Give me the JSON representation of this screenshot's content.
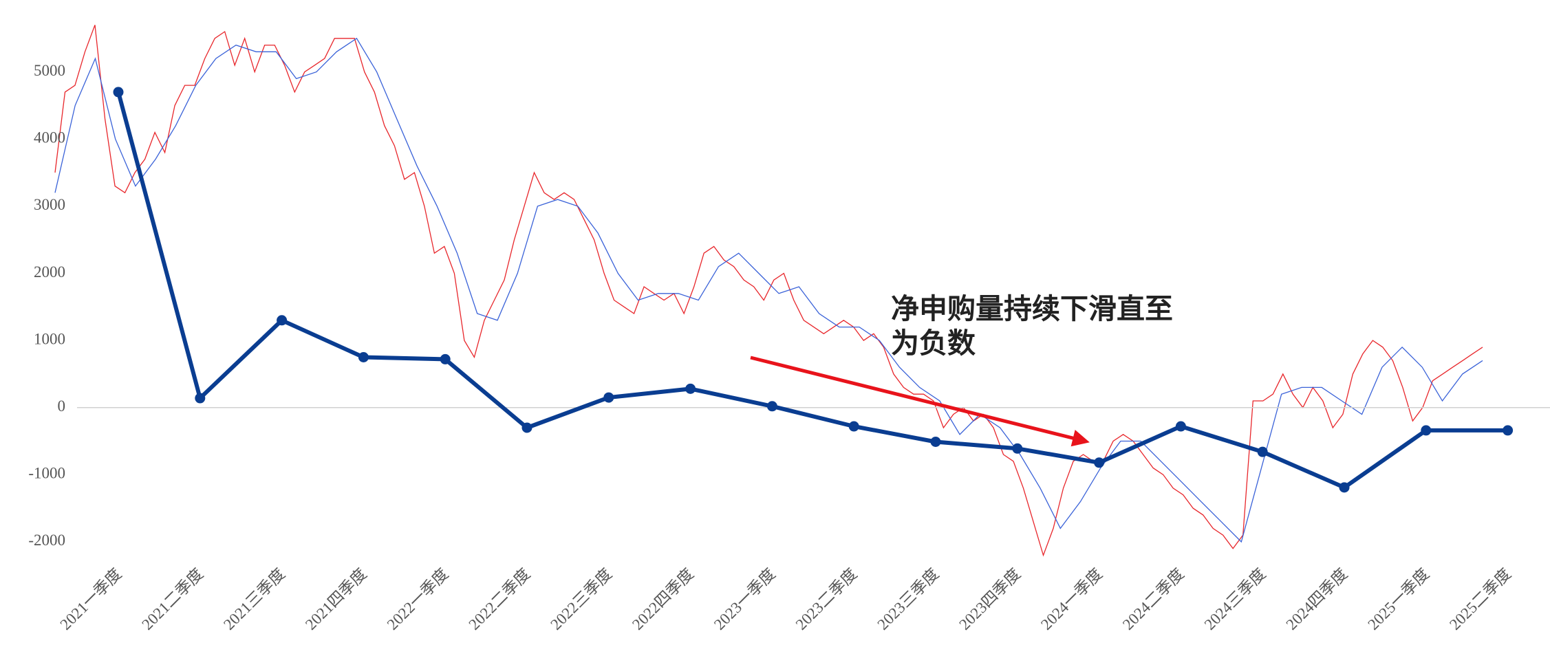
{
  "chart_data": {
    "type": "line",
    "categories": [
      "2021一季度",
      "2021二季度",
      "2021三季度",
      "2021四季度",
      "2022一季度",
      "2022二季度",
      "2022三季度",
      "2022四季度",
      "2023一季度",
      "2023二季度",
      "2023三季度",
      "2023四季度",
      "2024一季度",
      "2024二季度",
      "2024三季度",
      "2024四季度",
      "2025一季度",
      "2025二季度"
    ],
    "series": [
      {
        "color": "#0a3d91",
        "values": [
          4700,
          140,
          1300,
          750,
          720,
          -300,
          150,
          280,
          20,
          -280,
          -510,
          -610,
          -820,
          -280,
          -660,
          -1190,
          -340,
          -340
        ]
      }
    ],
    "overlay": [
      {
        "color": "#e8262b",
        "values": [
          3500,
          4700,
          4800,
          5300,
          5700,
          4300,
          3300,
          3200,
          3500,
          3700,
          4100,
          3800,
          4500,
          4800,
          4800,
          5200,
          5500,
          5600,
          5100,
          5500,
          5000,
          5400,
          5400,
          5100,
          4700,
          5000,
          5100,
          5200,
          5500,
          5500,
          5500,
          5000,
          4700,
          4200,
          3900,
          3400,
          3500,
          3000,
          2300,
          2400,
          2000,
          1000,
          750,
          1300,
          1600,
          1900,
          2500,
          3000,
          3500,
          3200,
          3100,
          3200,
          3100,
          2800,
          2500,
          2000,
          1600,
          1500,
          1400,
          1800,
          1700,
          1600,
          1700,
          1400,
          1800,
          2300,
          2400,
          2200,
          2100,
          1900,
          1800,
          1600,
          1900,
          2000,
          1600,
          1300,
          1200,
          1100,
          1200,
          1300,
          1200,
          1000,
          1100,
          900,
          500,
          300,
          200,
          200,
          100,
          -300,
          -100,
          0,
          -200,
          -100,
          -300,
          -700,
          -800,
          -1200,
          -1700,
          -2200,
          -1800,
          -1200,
          -800,
          -700,
          -800,
          -800,
          -500,
          -400,
          -500,
          -700,
          -900,
          -1000,
          -1200,
          -1300,
          -1500,
          -1600,
          -1800,
          -1900,
          -2100,
          -1900,
          100,
          100,
          200,
          500,
          200,
          0,
          300,
          100,
          -300,
          -100,
          500,
          800,
          1000,
          900,
          700,
          300,
          -200,
          0,
          400,
          500,
          600,
          700,
          800,
          900
        ]
      },
      {
        "color": "#3a62d8",
        "values": [
          3200,
          4500,
          5200,
          4000,
          3300,
          3700,
          4200,
          4800,
          5200,
          5400,
          5300,
          5300,
          4900,
          5000,
          5300,
          5500,
          5000,
          4300,
          3600,
          3000,
          2300,
          1400,
          1300,
          2000,
          3000,
          3100,
          3000,
          2600,
          2000,
          1600,
          1700,
          1700,
          1600,
          2100,
          2300,
          2000,
          1700,
          1800,
          1400,
          1200,
          1200,
          1000,
          600,
          300,
          100,
          -400,
          -100,
          -300,
          -700,
          -1200,
          -1800,
          -1400,
          -900,
          -500,
          -500,
          -800,
          -1100,
          -1400,
          -1700,
          -2000,
          -900,
          200,
          300,
          300,
          100,
          -100,
          600,
          900,
          600,
          100,
          500,
          700
        ]
      }
    ],
    "ylim": [
      -2400,
      6000
    ],
    "yticks": [
      -2000,
      -1000,
      0,
      1000,
      2000,
      3000,
      4000,
      5000
    ],
    "grid": false,
    "annotation": [
      "净申购量持续下滑直至",
      "为负数"
    ]
  }
}
